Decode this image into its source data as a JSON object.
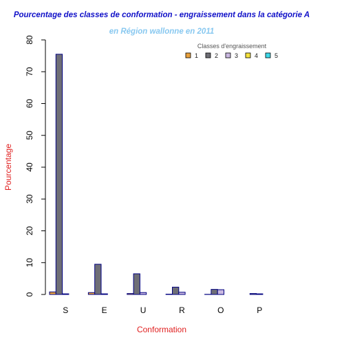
{
  "chart_data": {
    "type": "bar",
    "title": "Pourcentage des classes de conformation - engraissement dans la catégorie A",
    "subtitle": "en Région wallonne en 2011",
    "xlabel": "Conformation",
    "ylabel": "Pourcentage",
    "ylim": [
      0,
      80
    ],
    "yticks": [
      0,
      10,
      20,
      30,
      40,
      50,
      60,
      70,
      80
    ],
    "grid": false,
    "categories": [
      "S",
      "E",
      "U",
      "R",
      "O",
      "P"
    ],
    "legend": {
      "title": "Classes d'engraissement",
      "placement": "top-right"
    },
    "series": [
      {
        "name": "1",
        "color": "#E8A13C",
        "values": [
          0.8,
          0.6,
          0.3,
          0.1,
          0.05,
          0.0
        ]
      },
      {
        "name": "2",
        "color": "#6E6E76",
        "values": [
          75.5,
          9.5,
          6.5,
          2.3,
          1.6,
          0.3
        ]
      },
      {
        "name": "3",
        "color": "#C9B8E0",
        "values": [
          0.2,
          0.2,
          0.6,
          0.7,
          1.5,
          0.2
        ]
      },
      {
        "name": "4",
        "color": "#F5E23C",
        "values": [
          0.0,
          0.0,
          0.0,
          0.0,
          0.0,
          0.0
        ]
      },
      {
        "name": "5",
        "color": "#3ED8E8",
        "values": [
          0.0,
          0.0,
          0.0,
          0.0,
          0.0,
          0.0
        ]
      }
    ],
    "colors": {
      "title": "#1010C8",
      "subtitle": "#88C8F0",
      "axis_title": "#E02020",
      "bar_border": "#000080"
    }
  }
}
